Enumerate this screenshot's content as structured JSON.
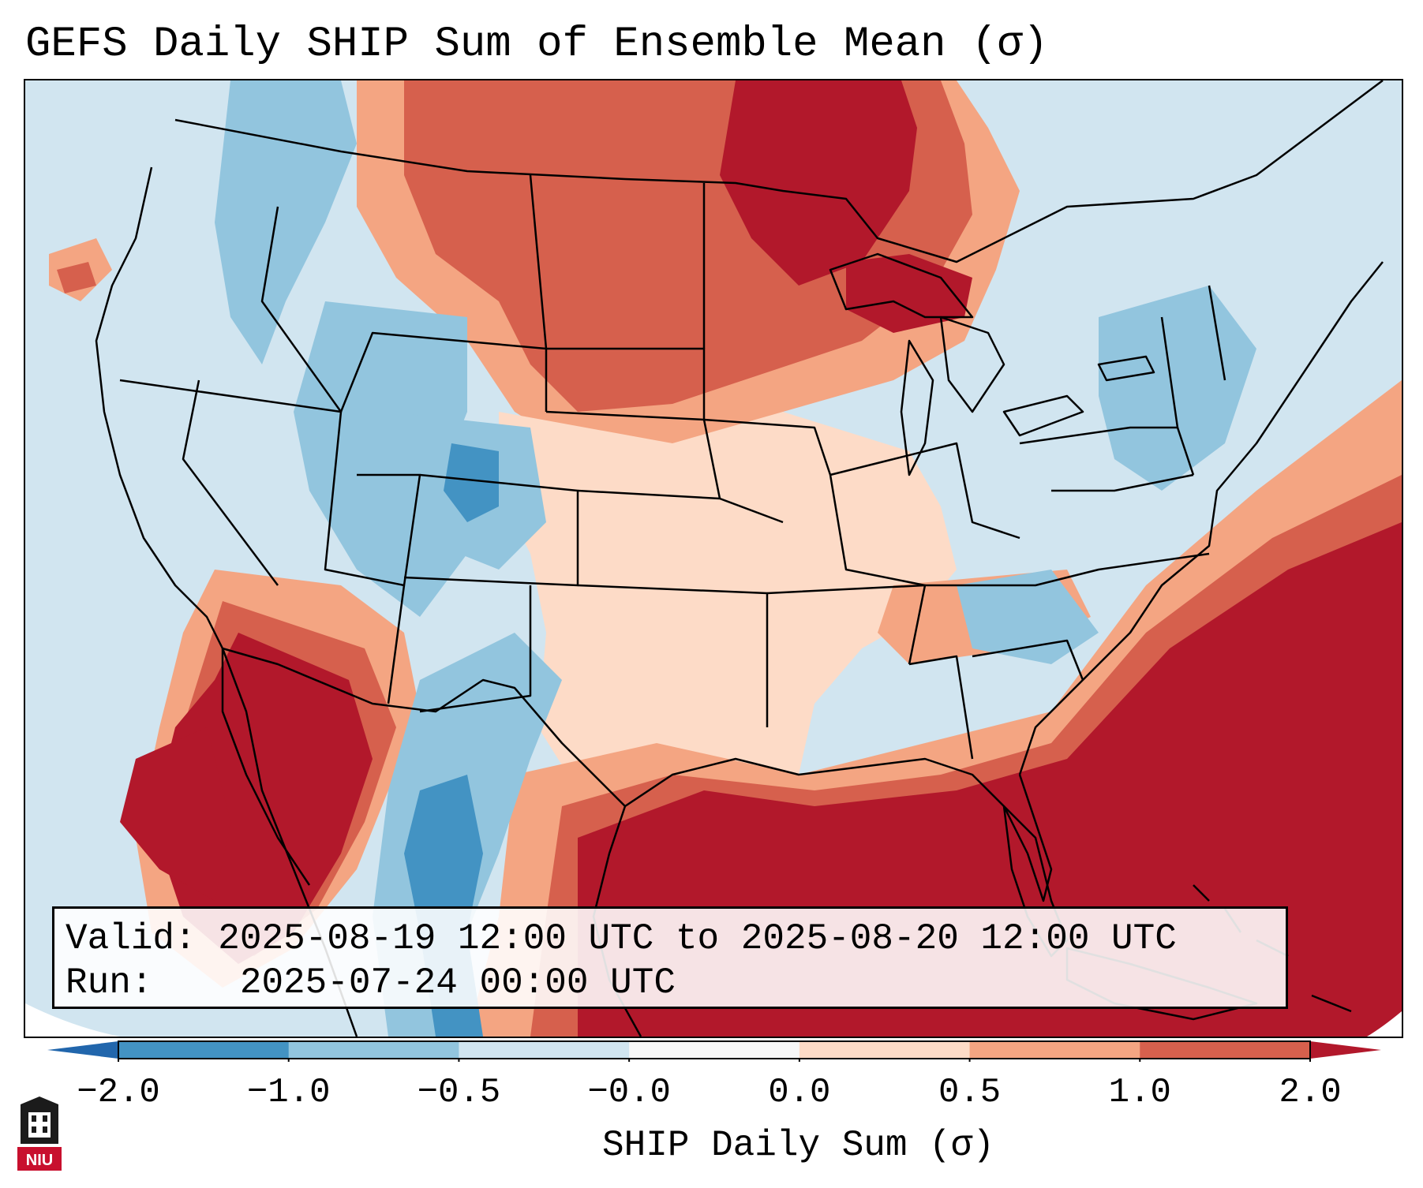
{
  "title": "GEFS Daily SHIP Sum of Ensemble Mean (σ)",
  "info_box": {
    "valid_label": "Valid:",
    "valid_value": "2025-08-19 12:00 UTC to 2025-08-20 12:00 UTC",
    "run_label": "Run:",
    "run_value": "2025-07-24 00:00 UTC"
  },
  "colorbar": {
    "label": "SHIP Daily Sum (σ)",
    "tick_labels": [
      "−2.0",
      "−1.0",
      "−0.5",
      "−0.0",
      "0.0",
      "0.5",
      "1.0",
      "2.0"
    ],
    "colors": [
      "#2166ac",
      "#4393c3",
      "#92c5de",
      "#d1e5f0",
      "#f7f7f7",
      "#fddbc7",
      "#f4a582",
      "#d6604d",
      "#b2182b"
    ],
    "extend": "both"
  },
  "map": {
    "region": "Contiguous United States",
    "coast_color": "#000000",
    "palette": {
      "strong_negative": "#4393c3",
      "negative": "#92c5de",
      "weak_negative": "#d1e5f0",
      "weak_positive": "#fddbc7",
      "positive": "#f4a582",
      "strong_positive": "#d6604d",
      "very_strong_positive": "#b2182b"
    }
  },
  "logo": {
    "text": "NIU",
    "icon": "university-tower-icon",
    "color": "#c8102e"
  }
}
